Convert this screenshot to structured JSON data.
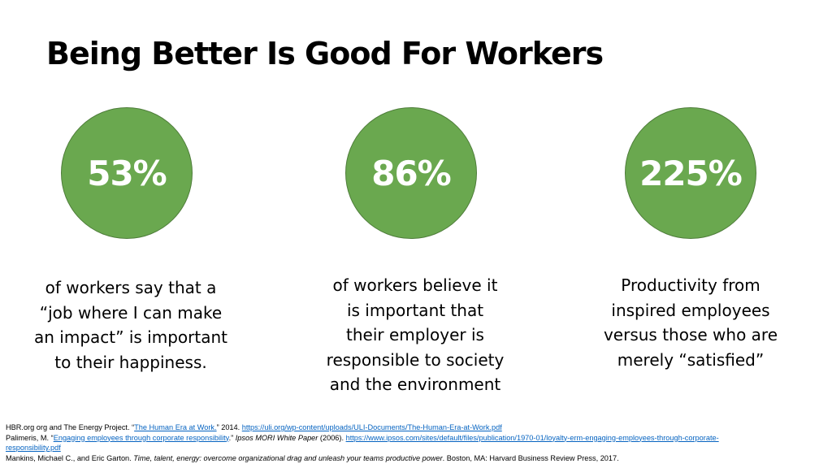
{
  "title": "Being Better Is Good For Workers",
  "stats": [
    {
      "value": "53%",
      "lines": [
        "of workers say that a",
        "“job where I can make",
        "an impact” is important",
        "to their happiness."
      ]
    },
    {
      "value": "86%",
      "lines": [
        "of workers believe it",
        "is important  that",
        "their employer is",
        "responsible to society",
        "and the environment"
      ]
    },
    {
      "value": "225%",
      "lines": [
        "Productivity from",
        "inspired employees",
        "versus those who are",
        "merely “satisfied”"
      ]
    }
  ],
  "references": {
    "ref1": {
      "prefix": "HBR.org org and The Energy Project. “",
      "link_title": "The Human Era at Work.",
      "middle": "” 2014. ",
      "url": "https://uli.org/wp-content/uploads/ULI-Documents/The-Human-Era-at-Work.pdf"
    },
    "ref2": {
      "prefix": "Palimeris, M. “",
      "link_title": "Engaging employees through corporate responsibility",
      "middle": ".” ",
      "italic": "Ipsos MORI White Paper",
      "after_italic": " (2006). ",
      "url_line1": "https://www.ipsos.com/sites/default/files/publication/1970-01/loyalty-erm-engaging-employees-through-corporate-",
      "url_line2": "responsibility.pdf"
    },
    "ref3": {
      "prefix": "Mankins, Michael C., and Eric Garton. ",
      "italic": "Time, talent, energy: overcome organizational drag and unleash your teams productive power",
      "suffix": ". Boston, MA: Harvard Business Review Press, 2017."
    }
  }
}
